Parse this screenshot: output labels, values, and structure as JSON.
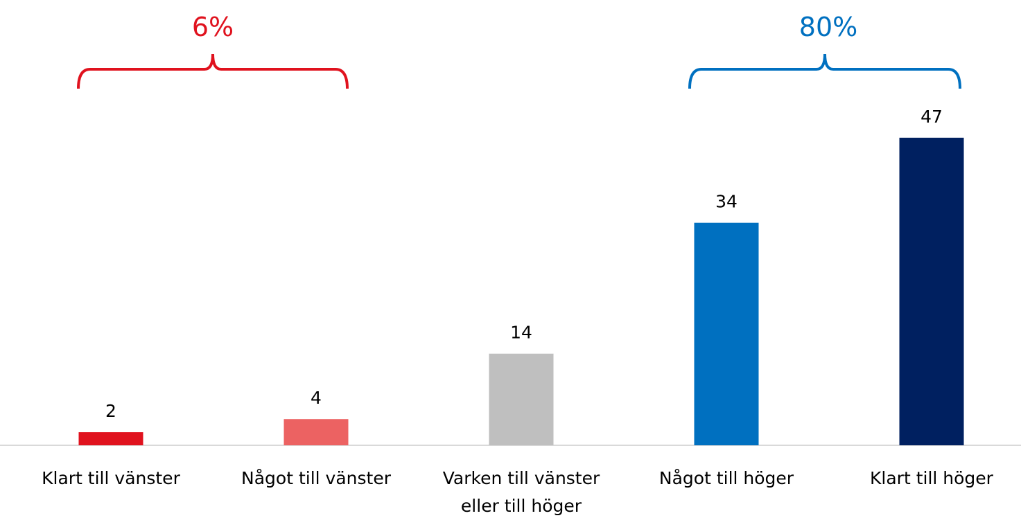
{
  "chart_data": {
    "type": "bar",
    "categories": [
      "Klart till vänster",
      "Något till vänster",
      "Varken till vänster eller till höger",
      "Något till höger",
      "Klart till höger"
    ],
    "values": [
      2,
      4,
      14,
      34,
      47
    ],
    "colors": [
      "#e0121e",
      "#ec6262",
      "#bfbfbf",
      "#0070c0",
      "#002060"
    ],
    "annotations": [
      {
        "text": "6%",
        "color": "#e0121e"
      },
      {
        "text": "80%",
        "color": "#0070c0"
      }
    ]
  }
}
